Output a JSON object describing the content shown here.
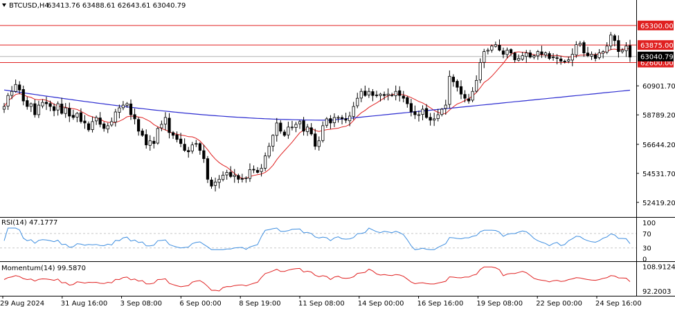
{
  "chart_data": {
    "type": "candlestick",
    "symbol": "BTCUSD,H4",
    "ohlc_header": "63413.76 63488.61 62643.61 63040.79",
    "price_axis": {
      "ylim": [
        51400,
        66400
      ],
      "ticks": [
        "60901.70",
        "58789.20",
        "56644.20",
        "54531.70",
        "52419.20"
      ],
      "tick_values": [
        60901.7,
        58789.2,
        56644.2,
        54531.7,
        52419.2
      ]
    },
    "levels": [
      {
        "label": "65300.00",
        "value": 65300,
        "color": "#e02020"
      },
      {
        "label": "63875.00",
        "value": 63875,
        "color": "#e02020"
      },
      {
        "label": "62600.00",
        "value": 62600,
        "color": "#e02020"
      }
    ],
    "current_price": {
      "label": "63040.79",
      "value": 63040.79
    },
    "x_labels": [
      "29 Aug 2024",
      "31 Aug 16:00",
      "3 Sep 08:00",
      "6 Sep 00:00",
      "8 Sep 19:00",
      "11 Sep 08:00",
      "14 Sep 00:00",
      "16 Sep 16:00",
      "19 Sep 08:00",
      "22 Sep 00:00",
      "24 Sep 16:00"
    ],
    "series": [
      {
        "name": "close",
        "values": [
          59400,
          60200,
          60500,
          61000,
          60600,
          59800,
          59400,
          59600,
          58800,
          59500,
          59700,
          59600,
          59400,
          59100,
          59600,
          58900,
          59300,
          58700,
          58600,
          58900,
          58300,
          58200,
          57700,
          58300,
          58600,
          58100,
          57800,
          58000,
          58300,
          59000,
          59300,
          59500,
          59600,
          58800,
          58500,
          57600,
          57300,
          56600,
          56900,
          56700,
          57800,
          58100,
          58600,
          57500,
          57300,
          57000,
          56700,
          56200,
          56100,
          56600,
          56700,
          56200,
          55600,
          54100,
          53600,
          53900,
          54100,
          54400,
          54600,
          54300,
          54400,
          54100,
          54100,
          54200,
          54800,
          54800,
          54600,
          54900,
          55800,
          56500,
          57300,
          58200,
          57600,
          57300,
          57900,
          57900,
          58100,
          58300,
          57600,
          57900,
          57400,
          56500,
          56900,
          58000,
          58500,
          58200,
          58600,
          58600,
          58500,
          58400,
          58700,
          59400,
          60000,
          60500,
          60200,
          60500,
          60200,
          60200,
          60300,
          60200,
          60300,
          60200,
          60500,
          60200,
          60000,
          59600,
          59000,
          58800,
          58800,
          59200,
          58600,
          58400,
          58500,
          58800,
          59200,
          59500,
          61600,
          61200,
          60800,
          60300,
          60000,
          59800,
          60500,
          61300,
          62600,
          63400,
          63500,
          63800,
          63900,
          63500,
          63200,
          63500,
          63300,
          62800,
          62900,
          63100,
          63300,
          63000,
          63100,
          63400,
          63200,
          63300,
          62900,
          63000,
          62900,
          62700,
          62700,
          62800,
          63200,
          63900,
          64000,
          63300,
          63100,
          63200,
          62900,
          63300,
          63400,
          63800,
          64600,
          64200,
          63400,
          63500,
          63800,
          63000
        ]
      },
      {
        "name": "MA fast",
        "color": "#e02020"
      },
      {
        "name": "MA slow",
        "color": "#2a2ad0"
      }
    ],
    "indicators": [
      {
        "title": "RSI(14) 47.1777",
        "ylim": [
          -5,
          110
        ],
        "ticks": [
          "100",
          "70",
          "30",
          "0"
        ],
        "tick_values": [
          100,
          70,
          30,
          0
        ],
        "levels": [
          70,
          30
        ],
        "color": "#3e8ee0"
      },
      {
        "title": "Momentum(14) 99.5870",
        "ylim": [
          89.5,
          111
        ],
        "ticks": [
          "108.9124",
          "92.2003"
        ],
        "tick_values": [
          108.9124,
          92.2003
        ],
        "color": "#e02020"
      }
    ],
    "colors": {
      "bull": "#ffffff",
      "bear": "#000000",
      "level": "#e02020",
      "grid": "#c8c8c8"
    }
  }
}
